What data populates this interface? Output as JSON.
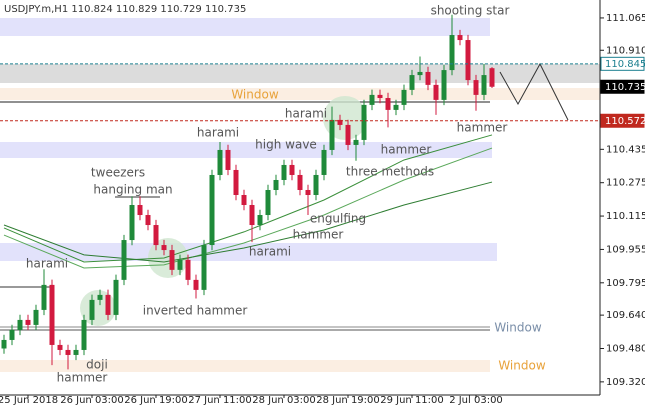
{
  "chart_data": {
    "type": "candlestick",
    "title": "USDJPY.m,H1  110.824 110.829 110.729 110.735",
    "up_color": "#1f8a3a",
    "down_color": "#d21a3f",
    "ylim": [
      109.257,
      111.151
    ],
    "yticks": [
      111.065,
      {
        "value": 110.91,
        "label": "110.910"
      },
      110.435,
      110.275,
      110.115,
      109.955,
      109.795,
      {
        "value": 109.64,
        "label": "109.640"
      },
      {
        "value": 109.48,
        "label": "109.480"
      },
      {
        "value": 109.32,
        "label": "109.320"
      }
    ],
    "categories": [
      null,
      null,
      null,
      "25 Jun 2018",
      null,
      null,
      null,
      null,
      null,
      null,
      null,
      "26 Jun 03:00",
      null,
      null,
      null,
      null,
      null,
      null,
      null,
      "26 Jun 19:00",
      null,
      null,
      null,
      null,
      null,
      null,
      null,
      "27 Jun 11:00",
      null,
      null,
      null,
      null,
      null,
      null,
      null,
      "28 Jun 03:00",
      null,
      null,
      null,
      null,
      null,
      null,
      null,
      "28 Jun 19:00",
      null,
      null,
      null,
      null,
      null,
      null,
      null,
      "29 Jun 11:00",
      null,
      null,
      null,
      null,
      null,
      null,
      null,
      "2 Jul 03:00",
      null,
      null
    ],
    "open": [
      109.48,
      109.521,
      109.569,
      109.617,
      109.593,
      109.665,
      109.785,
      109.497,
      109.473,
      109.449,
      109.473,
      109.617,
      109.713,
      109.737,
      109.641,
      109.809,
      110.0,
      110.168,
      110.12,
      110.072,
      109.976,
      109.952,
      109.857,
      109.905,
      109.809,
      109.761,
      109.976,
      110.312,
      110.432,
      110.336,
      110.216,
      110.168,
      110.072,
      110.12,
      110.24,
      110.288,
      110.36,
      110.312,
      110.24,
      110.216,
      110.312,
      110.432,
      110.576,
      110.552,
      110.456,
      110.48,
      110.648,
      110.696,
      110.681,
      110.624,
      110.648,
      110.72,
      110.791,
      110.806,
      110.744,
      110.672,
      110.815,
      110.983,
      110.959,
      110.767,
      110.696,
      110.824
    ],
    "high": [
      109.546,
      109.594,
      109.642,
      109.642,
      109.69,
      109.86,
      109.81,
      109.522,
      109.498,
      109.498,
      109.642,
      109.738,
      109.762,
      109.762,
      109.834,
      110.025,
      110.21,
      110.21,
      110.145,
      110.097,
      110.001,
      109.977,
      109.93,
      109.93,
      109.834,
      110.001,
      110.337,
      110.47,
      110.457,
      110.361,
      110.241,
      110.193,
      110.145,
      110.265,
      110.313,
      110.385,
      110.385,
      110.337,
      110.265,
      110.337,
      110.457,
      110.64,
      110.601,
      110.577,
      110.505,
      110.673,
      110.721,
      110.721,
      110.706,
      110.673,
      110.745,
      110.816,
      110.88,
      110.831,
      110.769,
      110.84,
      111.08,
      111.008,
      110.984,
      110.792,
      110.845,
      110.829
    ],
    "low": [
      109.455,
      109.496,
      109.544,
      109.568,
      109.568,
      109.64,
      109.4,
      109.448,
      109.38,
      109.424,
      109.448,
      109.592,
      109.688,
      109.616,
      109.616,
      109.784,
      109.975,
      110.095,
      110.047,
      109.951,
      109.927,
      109.832,
      109.832,
      109.784,
      109.72,
      109.736,
      109.951,
      110.287,
      110.311,
      110.191,
      110.143,
      109.99,
      110.047,
      110.095,
      110.215,
      110.263,
      110.287,
      110.215,
      110.12,
      110.191,
      110.287,
      110.407,
      110.527,
      110.431,
      110.38,
      110.455,
      110.623,
      110.656,
      110.54,
      110.599,
      110.623,
      110.695,
      110.766,
      110.719,
      110.6,
      110.647,
      110.79,
      110.934,
      110.742,
      110.62,
      110.671,
      110.729
    ],
    "close": [
      109.521,
      109.569,
      109.617,
      109.593,
      109.665,
      109.785,
      109.497,
      109.473,
      109.449,
      109.473,
      109.617,
      109.713,
      109.737,
      109.641,
      109.809,
      110.0,
      110.168,
      110.12,
      110.072,
      109.976,
      109.952,
      109.857,
      109.905,
      109.809,
      109.761,
      109.976,
      110.312,
      110.432,
      110.336,
      110.216,
      110.168,
      110.072,
      110.12,
      110.24,
      110.288,
      110.36,
      110.312,
      110.24,
      110.216,
      110.312,
      110.432,
      110.576,
      110.552,
      110.456,
      110.48,
      110.648,
      110.696,
      110.681,
      110.624,
      110.648,
      110.72,
      110.791,
      110.806,
      110.744,
      110.672,
      110.815,
      110.983,
      110.959,
      110.767,
      110.696,
      110.791,
      110.735
    ],
    "moving_averages": [
      {
        "color": "#3a8f3a",
        "x": [
          0,
          10,
          20,
          30,
          40,
          50,
          61
        ],
        "values": [
          110.058,
          109.895,
          109.914,
          110.039,
          110.192,
          110.384,
          110.504
        ]
      },
      {
        "color": "#5aa85a",
        "x": [
          0,
          10,
          20,
          30,
          40,
          50,
          61
        ],
        "values": [
          110.024,
          109.866,
          109.881,
          109.986,
          110.12,
          110.288,
          110.441
        ]
      },
      {
        "color": "#2e7d32",
        "x": [
          0,
          10,
          20,
          30,
          40,
          50,
          61
        ],
        "values": [
          110.072,
          109.929,
          109.895,
          109.962,
          110.048,
          110.168,
          110.278
        ]
      }
    ],
    "price_tags": [
      {
        "value": 110.845,
        "color": "#1b7f8f",
        "text_color": "#1b7f8f",
        "fill": "#ffffff"
      },
      {
        "value": 110.735,
        "color": "#000000",
        "text_color": "#ffffff",
        "fill": "#000000"
      },
      {
        "value": 110.572,
        "color": "#c0281e",
        "text_color": "#ffffff",
        "fill": "#c0281e"
      }
    ],
    "annotations": [
      "shooting star",
      "harami",
      "harami",
      "high wave",
      "hammer",
      "hammer",
      "three methods",
      "tweezers",
      "hanging man",
      "engulfing",
      "hammer",
      "harami",
      "harami",
      "inverted hammer",
      "doji",
      "hammer",
      "Window",
      "Window",
      "Window"
    ]
  }
}
